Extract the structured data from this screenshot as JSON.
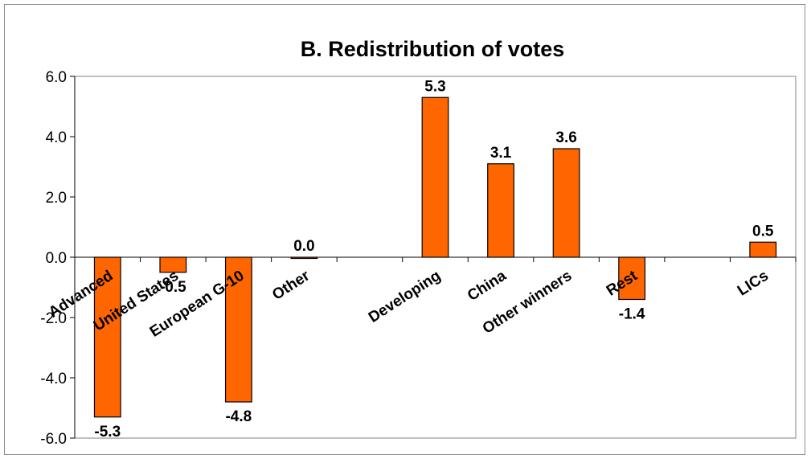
{
  "chart_data": {
    "type": "bar",
    "title": "B. Redistribution of votes",
    "xlabel": "",
    "ylabel": "",
    "categories": [
      "Advanced",
      "United States",
      "European G-10",
      "Other",
      "",
      "Developing",
      "China",
      "Other winners",
      "Rest",
      "",
      "LICs"
    ],
    "values": [
      -5.3,
      -0.5,
      -4.8,
      0.0,
      null,
      5.3,
      3.1,
      3.6,
      -1.4,
      null,
      0.5
    ],
    "data_labels": [
      "-5.3",
      "-0.5",
      "-4.8",
      "0.0",
      "",
      "5.3",
      "3.1",
      "3.6",
      "-1.4",
      "",
      "0.5"
    ],
    "ylim": [
      -6,
      6
    ],
    "yticks": [
      "-6.0",
      "-4.0",
      "-2.0",
      "0.0",
      "2.0",
      "4.0",
      "6.0"
    ],
    "bar_color": "#ff6600",
    "bar_edge_color": "#000000",
    "grid": false,
    "legend": "none"
  }
}
